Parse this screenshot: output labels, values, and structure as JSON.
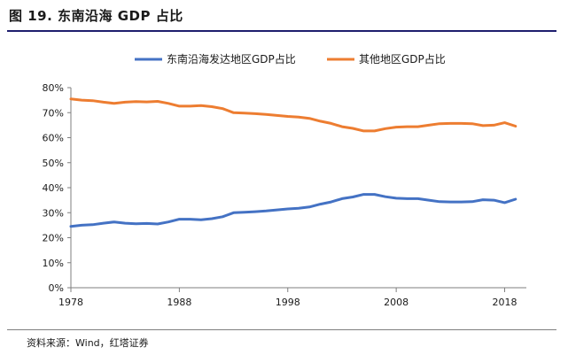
{
  "figure": {
    "title": "图 19. 东南沿海 GDP 占比",
    "source": "资料来源：Wind，红塔证券"
  },
  "chart_data": {
    "type": "line",
    "title": "",
    "xlabel": "",
    "ylabel": "",
    "x": [
      1978,
      1979,
      1980,
      1981,
      1982,
      1983,
      1984,
      1985,
      1986,
      1987,
      1988,
      1989,
      1990,
      1991,
      1992,
      1993,
      1994,
      1995,
      1996,
      1997,
      1998,
      1999,
      2000,
      2001,
      2002,
      2003,
      2004,
      2005,
      2006,
      2007,
      2008,
      2009,
      2010,
      2011,
      2012,
      2013,
      2014,
      2015,
      2016,
      2017,
      2018,
      2019
    ],
    "xlim": [
      1978,
      2020
    ],
    "x_ticks": [
      1978,
      1988,
      1998,
      2008,
      2018
    ],
    "ylim": [
      0,
      80
    ],
    "y_ticks": [
      0,
      10,
      20,
      30,
      40,
      50,
      60,
      70,
      80
    ],
    "y_tick_labels": [
      "0%",
      "10%",
      "20%",
      "30%",
      "40%",
      "50%",
      "60%",
      "70%",
      "80%"
    ],
    "grid": false,
    "legend_position": "top",
    "series": [
      {
        "name": "东南沿海发达地区GDP占比",
        "color": "#4472C4",
        "values": [
          24.5,
          25.0,
          25.2,
          25.8,
          26.3,
          25.8,
          25.6,
          25.7,
          25.5,
          26.3,
          27.4,
          27.4,
          27.2,
          27.6,
          28.4,
          30.0,
          30.2,
          30.4,
          30.7,
          31.1,
          31.5,
          31.8,
          32.3,
          33.4,
          34.3,
          35.6,
          36.3,
          37.3,
          37.3,
          36.4,
          35.8,
          35.6,
          35.6,
          35.0,
          34.4,
          34.3,
          34.3,
          34.4,
          35.2,
          35.0,
          34.0,
          35.4
        ]
      },
      {
        "name": "其他地区GDP占比",
        "color": "#ED7D31",
        "values": [
          75.5,
          75.0,
          74.8,
          74.2,
          73.7,
          74.2,
          74.4,
          74.3,
          74.5,
          73.7,
          72.6,
          72.6,
          72.8,
          72.4,
          71.6,
          70.0,
          69.8,
          69.6,
          69.3,
          68.9,
          68.5,
          68.2,
          67.7,
          66.6,
          65.7,
          64.4,
          63.7,
          62.7,
          62.7,
          63.6,
          64.2,
          64.4,
          64.4,
          65.0,
          65.6,
          65.7,
          65.7,
          65.6,
          64.8,
          65.0,
          66.0,
          64.6
        ]
      }
    ]
  }
}
